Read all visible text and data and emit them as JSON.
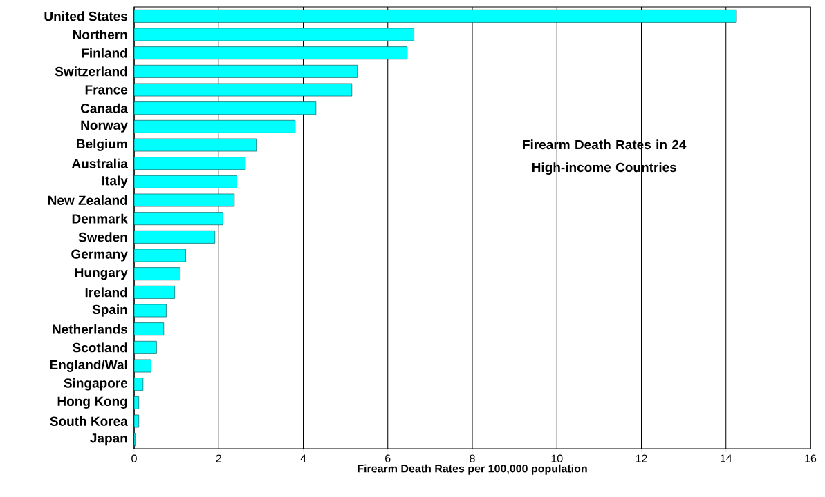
{
  "chart_data": {
    "type": "bar",
    "orientation": "horizontal",
    "title": "Firearm Death Rates in 24 High-income Countries",
    "xlabel": "Firearm Death Rates per 100,000 population",
    "categories": [
      "United States",
      "Northern",
      "Finland",
      "Switzerland",
      "France",
      "Canada",
      "Norway",
      "Belgium",
      "Australia",
      "Italy",
      "New Zealand",
      "Denmark",
      "Sweden",
      "Germany",
      "Hungary",
      "Ireland",
      "Spain",
      "Netherlands",
      "Scotland",
      "England/Wal",
      "Singapore",
      "Hong Kong",
      "South Korea",
      "Japan"
    ],
    "values": [
      14.25,
      6.62,
      6.46,
      5.28,
      5.15,
      4.3,
      3.81,
      2.89,
      2.63,
      2.43,
      2.37,
      2.1,
      1.91,
      1.22,
      1.09,
      0.96,
      0.76,
      0.7,
      0.53,
      0.4,
      0.21,
      0.11,
      0.11,
      0.03
    ],
    "color": "#00ffff",
    "xlim": [
      0,
      16
    ],
    "xticks": [
      0,
      2,
      4,
      6,
      8,
      10,
      12,
      14,
      16
    ],
    "grid": "x"
  }
}
